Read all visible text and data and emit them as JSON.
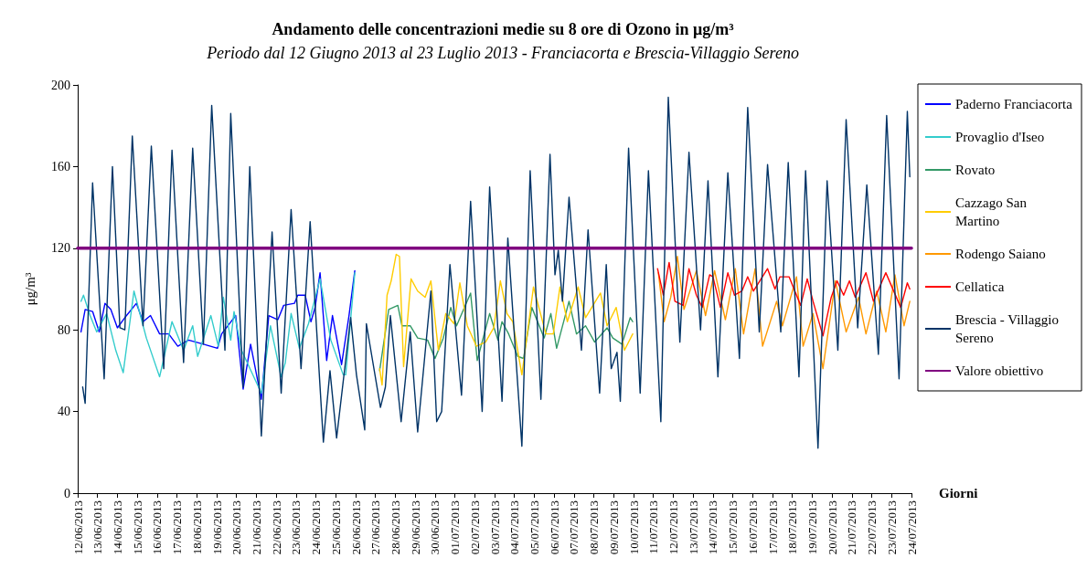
{
  "chart_data": {
    "type": "line",
    "title": "Andamento delle concentrazioni medie su 8 ore di Ozono in μg/m³",
    "subtitle": "Periodo dal 12 Giugno 2013 al 23 Luglio 2013 - Franciacorta e Brescia-Villaggio Sereno",
    "xlabel": "Giorni",
    "ylabel": "μg/m³",
    "xlim": [
      "2013-06-12",
      "2013-07-24"
    ],
    "xticks": [
      {
        "value": "2013-06-12",
        "label": "12/06/2013"
      },
      {
        "value": "2013-06-13",
        "label": "13/06/2013"
      },
      {
        "value": "2013-06-14",
        "label": "14/06/2013"
      },
      {
        "value": "2013-06-15",
        "label": "15/06/2013"
      },
      {
        "value": "2013-06-16",
        "label": "16/06/2013"
      },
      {
        "value": "2013-06-17",
        "label": "17/06/2013"
      },
      {
        "value": "2013-06-18",
        "label": "18/06/2013"
      },
      {
        "value": "2013-06-19",
        "label": "19/06/2013"
      },
      {
        "value": "2013-06-20",
        "label": "20/06/2013"
      },
      {
        "value": "2013-06-21",
        "label": "21/06/2013"
      },
      {
        "value": "2013-06-22",
        "label": "22/06/2013"
      },
      {
        "value": "2013-06-23",
        "label": "23/06/2013"
      },
      {
        "value": "2013-06-24",
        "label": "24/06/2013"
      },
      {
        "value": "2013-06-25",
        "label": "25/06/2013"
      },
      {
        "value": "2013-06-26",
        "label": "26/06/2013"
      },
      {
        "value": "2013-06-27",
        "label": "27/06/2013"
      },
      {
        "value": "2013-06-28",
        "label": "28/06/2013"
      },
      {
        "value": "2013-06-29",
        "label": "29/06/2013"
      },
      {
        "value": "2013-06-30",
        "label": "30/06/2013"
      },
      {
        "value": "2013-07-01",
        "label": "01/07/2013"
      },
      {
        "value": "2013-07-02",
        "label": "02/07/2013"
      },
      {
        "value": "2013-07-03",
        "label": "03/07/2013"
      },
      {
        "value": "2013-07-04",
        "label": "04/07/2013"
      },
      {
        "value": "2013-07-05",
        "label": "05/07/2013"
      },
      {
        "value": "2013-07-06",
        "label": "06/07/2013"
      },
      {
        "value": "2013-07-07",
        "label": "07/07/2013"
      },
      {
        "value": "2013-07-08",
        "label": "08/07/2013"
      },
      {
        "value": "2013-07-09",
        "label": "09/07/2013"
      },
      {
        "value": "2013-07-10",
        "label": "10/07/2013"
      },
      {
        "value": "2013-07-11",
        "label": "11/07/2013"
      },
      {
        "value": "2013-07-12",
        "label": "12/07/2013"
      },
      {
        "value": "2013-07-13",
        "label": "13/07/2013"
      },
      {
        "value": "2013-07-14",
        "label": "14/07/2013"
      },
      {
        "value": "2013-07-15",
        "label": "15/07/2013"
      },
      {
        "value": "2013-07-16",
        "label": "16/07/2013"
      },
      {
        "value": "2013-07-17",
        "label": "17/07/2013"
      },
      {
        "value": "2013-07-18",
        "label": "18/07/2013"
      },
      {
        "value": "2013-07-19",
        "label": "19/07/2013"
      },
      {
        "value": "2013-07-20",
        "label": "20/07/2013"
      },
      {
        "value": "2013-07-21",
        "label": "21/07/2013"
      },
      {
        "value": "2013-07-22",
        "label": "22/07/2013"
      },
      {
        "value": "2013-07-23",
        "label": "23/07/2013"
      },
      {
        "value": "2013-07-24",
        "label": "24/07/2013"
      }
    ],
    "ylim": [
      0,
      200
    ],
    "yticks": [
      0,
      40,
      80,
      120,
      160,
      200
    ],
    "grid": false,
    "legend": "right",
    "marker": "none",
    "line_style": "solid",
    "series": [
      {
        "name": "Paderno Franciacorta",
        "color": "#0000ff",
        "x": [
          "2013-06-12T04:00",
          "2013-06-12T09:00",
          "2013-06-12T18:00",
          "2013-06-13T02:00",
          "2013-06-13T09:00",
          "2013-06-13T16:00",
          "2013-06-14T00:00",
          "2013-06-14T09:00",
          "2013-06-14T23:00",
          "2013-06-15T07:00",
          "2013-06-15T16:00",
          "2013-06-16T03:00",
          "2013-06-16T14:00",
          "2013-06-17T01:00",
          "2013-06-17T14:00",
          "2013-06-18T08:00",
          "2013-06-19T01:00",
          "2013-06-19T06:00",
          "2013-06-19T23:00",
          "2013-06-20T08:00",
          "2013-06-20T17:00",
          "2013-06-21T06:00",
          "2013-06-21T15:00",
          "2013-06-22T02:00",
          "2013-06-22T09:00",
          "2013-06-22T22:00",
          "2013-06-23T02:00",
          "2013-06-23T11:00",
          "2013-06-23T18:00",
          "2013-06-23T23:00",
          "2013-06-24T05:00",
          "2013-06-24T13:00",
          "2013-06-24T20:00",
          "2013-06-25T07:00",
          "2013-06-25T16:00",
          "2013-06-25T23:00"
        ],
        "values": [
          79,
          90,
          89,
          79,
          93,
          90,
          81,
          86,
          93,
          84,
          87,
          78,
          78,
          72,
          75,
          73,
          71,
          78,
          87,
          51,
          73,
          46,
          87,
          85,
          92,
          93,
          97,
          97,
          84,
          91,
          108,
          65,
          87,
          63,
          87,
          109
        ]
      },
      {
        "name": "Provaglio d'Iseo",
        "color": "#33cccc",
        "x": [
          "2013-06-12T04:00",
          "2013-06-12T07:00",
          "2013-06-12T15:00",
          "2013-06-12T23:00",
          "2013-06-13T11:00",
          "2013-06-13T22:00",
          "2013-06-14T07:00",
          "2013-06-14T20:00",
          "2013-06-15T11:00",
          "2013-06-16T03:00",
          "2013-06-16T18:00",
          "2013-06-17T08:00",
          "2013-06-17T19:00",
          "2013-06-18T01:00",
          "2013-06-18T17:00",
          "2013-06-19T02:00",
          "2013-06-19T08:00",
          "2013-06-19T17:00",
          "2013-06-19T21:00",
          "2013-06-20T06:00",
          "2013-06-21T06:00",
          "2013-06-21T17:00",
          "2013-06-22T06:00",
          "2013-06-22T11:00",
          "2013-06-22T18:00",
          "2013-06-23T04:00",
          "2013-06-23T15:00",
          "2013-06-24T05:00",
          "2013-06-24T18:00",
          "2013-06-25T09:00",
          "2013-06-25T12:00",
          "2013-06-25T23:00"
        ],
        "values": [
          94,
          97,
          87,
          79,
          88,
          70,
          59,
          99,
          76,
          57,
          84,
          70,
          82,
          67,
          87,
          72,
          96,
          75,
          89,
          70,
          49,
          82,
          57,
          64,
          88,
          71,
          83,
          105,
          75,
          58,
          58,
          108
        ]
      },
      {
        "name": "Rovato",
        "color": "#339966",
        "x": [
          "2013-06-27T05:00",
          "2013-06-27T16:00",
          "2013-06-28T03:00",
          "2013-06-28T08:00",
          "2013-06-28T18:00",
          "2013-06-29T03:00",
          "2013-06-29T15:00",
          "2013-06-30T00:00",
          "2013-06-30T10:00",
          "2013-06-30T19:00",
          "2013-07-01T02:00",
          "2013-07-01T19:00",
          "2013-07-02T03:00",
          "2013-07-02T18:00",
          "2013-07-03T04:00",
          "2013-07-03T09:00",
          "2013-07-03T17:00",
          "2013-07-04T04:00",
          "2013-07-04T11:00",
          "2013-07-04T21:00",
          "2013-07-05T12:00",
          "2013-07-05T20:00",
          "2013-07-06T03:00",
          "2013-07-06T18:00",
          "2013-07-07T03:00",
          "2013-07-07T14:00",
          "2013-07-08T01:00",
          "2013-07-08T16:00",
          "2013-07-08T23:00",
          "2013-07-09T10:00",
          "2013-07-09T20:00",
          "2013-07-09T23:00"
        ],
        "values": [
          60,
          90,
          92,
          82,
          82,
          76,
          75,
          66,
          76,
          91,
          82,
          98,
          65,
          88,
          75,
          84,
          78,
          67,
          66,
          91,
          76,
          88,
          71,
          94,
          78,
          82,
          74,
          81,
          76,
          73,
          86,
          84
        ]
      },
      {
        "name": "Cazzago San Martino",
        "color": "#ffcc00",
        "x": [
          "2013-06-27T05:00",
          "2013-06-27T08:00",
          "2013-06-27T14:00",
          "2013-06-27T19:00",
          "2013-06-28T01:00",
          "2013-06-28T05:00",
          "2013-06-28T10:00",
          "2013-06-28T19:00",
          "2013-06-29T03:00",
          "2013-06-29T12:00",
          "2013-06-29T19:00",
          "2013-06-30T04:00",
          "2013-06-30T13:00",
          "2013-06-30T23:00",
          "2013-07-01T06:00",
          "2013-07-01T15:00",
          "2013-07-02T02:00",
          "2013-07-02T13:00",
          "2013-07-02T23:00",
          "2013-07-03T07:00",
          "2013-07-03T15:00",
          "2013-07-03T22:00",
          "2013-07-04T09:00",
          "2013-07-04T23:00",
          "2013-07-05T14:00",
          "2013-07-05T23:00",
          "2013-07-06T07:00",
          "2013-07-06T16:00",
          "2013-07-07T05:00",
          "2013-07-07T14:00",
          "2013-07-08T08:00",
          "2013-07-08T16:00",
          "2013-07-09T03:00",
          "2013-07-09T13:00",
          "2013-07-09T23:00"
        ],
        "values": [
          61,
          53,
          97,
          104,
          117,
          116,
          62,
          105,
          99,
          96,
          104,
          70,
          88,
          83,
          103,
          82,
          72,
          74,
          81,
          104,
          88,
          84,
          58,
          101,
          78,
          78,
          101,
          84,
          101,
          86,
          98,
          82,
          91,
          70,
          78
        ]
      },
      {
        "name": "Rodengo Saiano",
        "color": "#ff9900",
        "x": [
          "2013-07-11T06:00",
          "2013-07-11T13:00",
          "2013-07-11T21:00",
          "2013-07-12T05:00",
          "2013-07-12T13:00",
          "2013-07-13T04:00",
          "2013-07-13T15:00",
          "2013-07-14T02:00",
          "2013-07-14T15:00",
          "2013-07-15T03:00",
          "2013-07-15T13:00",
          "2013-07-16T03:00",
          "2013-07-16T12:00",
          "2013-07-17T05:00",
          "2013-07-17T12:00",
          "2013-07-18T05:00",
          "2013-07-18T13:00",
          "2013-07-19T01:00",
          "2013-07-19T13:00",
          "2013-07-20T04:00",
          "2013-07-20T17:00",
          "2013-07-21T08:00",
          "2013-07-21T17:00",
          "2013-07-22T06:00",
          "2013-07-22T17:00",
          "2013-07-23T04:00",
          "2013-07-23T15:00",
          "2013-07-23T22:00"
        ],
        "values": [
          108,
          84,
          96,
          116,
          90,
          109,
          87,
          109,
          85,
          110,
          78,
          110,
          72,
          94,
          82,
          106,
          72,
          88,
          61,
          104,
          79,
          96,
          78,
          99,
          79,
          107,
          82,
          94
        ]
      },
      {
        "name": "Cellatica",
        "color": "#ff0000",
        "x": [
          "2013-07-11T05:00",
          "2013-07-11T12:00",
          "2013-07-11T19:00",
          "2013-07-12T02:00",
          "2013-07-12T12:00",
          "2013-07-12T19:00",
          "2013-07-13T04:00",
          "2013-07-13T11:00",
          "2013-07-13T20:00",
          "2013-07-14T00:00",
          "2013-07-14T09:00",
          "2013-07-14T18:00",
          "2013-07-15T02:00",
          "2013-07-15T11:00",
          "2013-07-15T18:00",
          "2013-07-16T01:00",
          "2013-07-16T18:00",
          "2013-07-17T03:00",
          "2013-07-17T09:00",
          "2013-07-17T20:00",
          "2013-07-18T10:00",
          "2013-07-18T18:00",
          "2013-07-19T01:00",
          "2013-07-19T13:00",
          "2013-07-19T23:00",
          "2013-07-20T06:00",
          "2013-07-20T14:00",
          "2013-07-20T21:00",
          "2013-07-21T04:00",
          "2013-07-21T17:00",
          "2013-07-22T02:00",
          "2013-07-22T17:00",
          "2013-07-23T11:00",
          "2013-07-23T19:00",
          "2013-07-23T22:00"
        ],
        "values": [
          110,
          97,
          113,
          94,
          92,
          110,
          97,
          91,
          107,
          106,
          91,
          108,
          97,
          99,
          106,
          99,
          110,
          100,
          106,
          106,
          92,
          105,
          94,
          77,
          96,
          104,
          97,
          104,
          96,
          108,
          94,
          108,
          91,
          103,
          100
        ]
      },
      {
        "name": "Brescia - Villaggio Sereno",
        "color": "#003366",
        "x": [
          "2013-06-12T06:00",
          "2013-06-12T09:00",
          "2013-06-12T18:00",
          "2013-06-13T08:00",
          "2013-06-13T18:00",
          "2013-06-14T03:00",
          "2013-06-14T09:00",
          "2013-06-14T18:00",
          "2013-06-15T07:00",
          "2013-06-15T17:00",
          "2013-06-16T08:00",
          "2013-06-16T18:00",
          "2013-06-17T08:00",
          "2013-06-17T19:00",
          "2013-06-18T08:00",
          "2013-06-18T18:00",
          "2013-06-19T10:00",
          "2013-06-19T17:00",
          "2013-06-20T08:00",
          "2013-06-20T16:00",
          "2013-06-21T06:00",
          "2013-06-21T19:00",
          "2013-06-22T06:00",
          "2013-06-22T18:00",
          "2013-06-23T06:00",
          "2013-06-23T17:00",
          "2013-06-24T09:00",
          "2013-06-24T17:00",
          "2013-06-25T01:00",
          "2013-06-25T18:00",
          "2013-06-26T01:00",
          "2013-06-26T11:00",
          "2013-06-26T13:00",
          "2013-06-27T06:00",
          "2013-06-27T12:00",
          "2013-06-27T18:00",
          "2013-06-28T07:00",
          "2013-06-28T18:00",
          "2013-06-29T03:00",
          "2013-06-29T19:00",
          "2013-06-30T02:00",
          "2013-06-30T08:00",
          "2013-06-30T18:00",
          "2013-07-01T08:00",
          "2013-07-01T19:00",
          "2013-07-02T09:00",
          "2013-07-02T18:00",
          "2013-07-03T09:00",
          "2013-07-03T16:00",
          "2013-07-04T09:00",
          "2013-07-04T19:00",
          "2013-07-05T08:00",
          "2013-07-05T19:00",
          "2013-07-06T01:00",
          "2013-07-06T05:00",
          "2013-07-06T10:00",
          "2013-07-06T18:00",
          "2013-07-07T09:00",
          "2013-07-07T17:00",
          "2013-07-08T07:00",
          "2013-07-08T15:00",
          "2013-07-08T21:00",
          "2013-07-09T04:00",
          "2013-07-09T08:00",
          "2013-07-09T18:00",
          "2013-07-10T08:00",
          "2013-07-10T18:00",
          "2013-07-11T09:00",
          "2013-07-11T18:00",
          "2013-07-12T08:00",
          "2013-07-12T19:00",
          "2013-07-13T09:00",
          "2013-07-13T18:00",
          "2013-07-14T06:00",
          "2013-07-14T18:00",
          "2013-07-15T08:00",
          "2013-07-15T18:00",
          "2013-07-16T08:00",
          "2013-07-16T18:00",
          "2013-07-17T10:00",
          "2013-07-17T19:00",
          "2013-07-18T08:00",
          "2013-07-18T16:00",
          "2013-07-19T07:00",
          "2013-07-19T18:00",
          "2013-07-20T07:00",
          "2013-07-20T17:00",
          "2013-07-21T07:00",
          "2013-07-21T18:00",
          "2013-07-22T08:00",
          "2013-07-22T18:00",
          "2013-07-23T09:00",
          "2013-07-23T19:00",
          "2013-07-23T22:00"
        ],
        "values": [
          52,
          44,
          152,
          56,
          160,
          81,
          80,
          175,
          82,
          170,
          61,
          168,
          64,
          169,
          73,
          190,
          70,
          186,
          52,
          160,
          28,
          128,
          49,
          139,
          61,
          133,
          25,
          60,
          27,
          86,
          58,
          31,
          83,
          42,
          52,
          87,
          35,
          79,
          30,
          99,
          35,
          40,
          112,
          48,
          143,
          40,
          150,
          45,
          125,
          23,
          158,
          46,
          166,
          107,
          119,
          94,
          145,
          70,
          129,
          49,
          112,
          61,
          69,
          45,
          169,
          49,
          158,
          35,
          194,
          74,
          167,
          80,
          153,
          57,
          157,
          66,
          189,
          79,
          161,
          79,
          162,
          57,
          158,
          22,
          153,
          70,
          183,
          81,
          151,
          68,
          185,
          56,
          187,
          155
        ]
      },
      {
        "name": "Valore obiettivo",
        "color": "#800080",
        "x": [
          "2013-06-12",
          "2013-07-24"
        ],
        "values": [
          120,
          120
        ]
      }
    ]
  }
}
